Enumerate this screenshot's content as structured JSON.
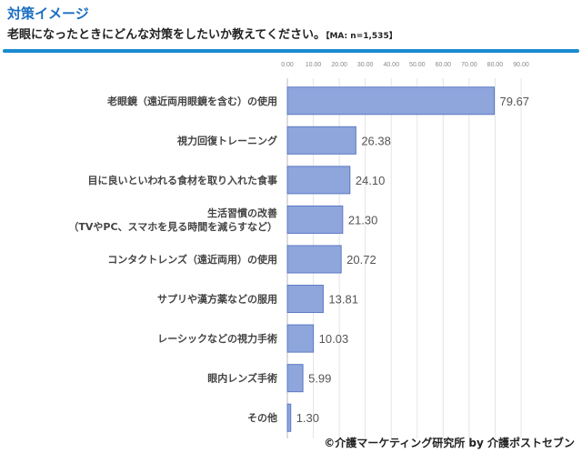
{
  "header": {
    "title": "対策イメージ",
    "subtitle": "老眼になったときにどんな対策をしたいか教えてください。",
    "note": "【MA: n=1,535】"
  },
  "footer": "©介護マーケティング研究所 by 介護ポストセブン",
  "chart_data": {
    "type": "bar",
    "orientation": "horizontal",
    "categories": [
      "老眼鏡（遠近両用眼鏡を含む）の使用",
      "視力回復トレーニング",
      "目に良いといわれる食材を取り入れた食事",
      "生活習慣の改善\n（TVやPC、スマホを見る時間を減らすなど）",
      "コンタクトレンズ（遠近両用）の使用",
      "サプリや漢方薬などの服用",
      "レーシックなどの視力手術",
      "眼内レンズ手術",
      "その他"
    ],
    "values": [
      79.67,
      26.38,
      24.1,
      21.3,
      20.72,
      13.81,
      10.03,
      5.99,
      1.3
    ],
    "value_labels": [
      "79.67",
      "26.38",
      "24.10",
      "21.30",
      "20.72",
      "13.81",
      "10.03",
      "5.99",
      "1.30"
    ],
    "xlim": [
      0,
      90
    ],
    "xticks": [
      "0.00",
      "10.00",
      "20.00",
      "30.00",
      "40.00",
      "50.00",
      "60.00",
      "70.00",
      "80.00",
      "90.00"
    ],
    "axis_position": "top",
    "grid": true,
    "bar_color": "#8fa6dc",
    "bar_edge": "#5b78c4"
  }
}
